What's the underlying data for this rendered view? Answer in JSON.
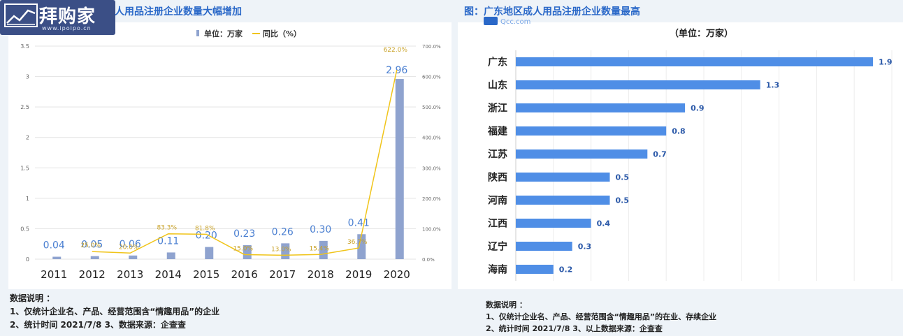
{
  "colors": {
    "bar_left": "#8fa3cf",
    "line": "#f0c419",
    "bar_right": "#4f8ee6",
    "title": "#2a68c8",
    "value_left": "#4a7fd1",
    "pct_label": "#c9a227"
  },
  "logo": {
    "text": "拜购家",
    "url": "www.ipoipo.cn"
  },
  "left": {
    "title": "成人用品注册企业数量大幅增加",
    "notes": {
      "heading": "数据说明 ：",
      "line1": "1、仅统计企业名、产品、经营范围含“情趣用品”的企业",
      "line2": "2、统计时间  2021/7/8      3、数据来源：企查查"
    }
  },
  "right": {
    "title": "图：广东地区成人用品注册企业数量最高",
    "qcc": "Qcc.com",
    "notes": {
      "heading": "数据说明 ：",
      "line1": "1、仅统计企业名、产品、经营范围含“情趣用品”的在业、存续企业",
      "line2": "2、统计时间  2021/7/8        3、以上数据来源：企查查"
    }
  },
  "chart_data": [
    {
      "type": "bar",
      "legend": [
        "单位：万家",
        "同比（%）"
      ],
      "legend_position": "top-center",
      "categories": [
        "2011",
        "2012",
        "2013",
        "2014",
        "2015",
        "2016",
        "2017",
        "2018",
        "2019",
        "2020"
      ],
      "series": [
        {
          "name": "单位：万家",
          "type": "bar",
          "values": [
            0.04,
            0.05,
            0.06,
            0.11,
            0.2,
            0.23,
            0.26,
            0.3,
            0.41,
            2.96
          ],
          "labels": [
            "0.04",
            "0.05",
            "0.06",
            "0.11",
            "0.20",
            "0.23",
            "0.26",
            "0.30",
            "0.41",
            "2.96"
          ]
        },
        {
          "name": "同比（%）",
          "type": "line",
          "axis": "right",
          "values": [
            null,
            25.0,
            20.0,
            83.3,
            81.8,
            15.0,
            13.0,
            15.4,
            36.7,
            622.0
          ],
          "labels": [
            "",
            "25.0%",
            "20.0%",
            "83.3%",
            "81.8%",
            "15.0%",
            "13.0%",
            "15.4%",
            "36.7%",
            "622.0%"
          ]
        }
      ],
      "ylim": [
        0,
        3.5
      ],
      "yticks": [
        "0",
        "0.5",
        "1",
        "1.5",
        "2",
        "2.5",
        "3",
        "3.5"
      ],
      "y2lim": [
        0,
        700
      ],
      "y2ticks": [
        "0.0%",
        "100.0%",
        "200.0%",
        "300.0%",
        "400.0%",
        "500.0%",
        "600.0%",
        "700.0%"
      ],
      "grid": "horizontal"
    },
    {
      "type": "bar",
      "orientation": "horizontal",
      "unit_label": "（单位：万家）",
      "categories": [
        "广东",
        "山东",
        "浙江",
        "福建",
        "江苏",
        "陕西",
        "河南",
        "江西",
        "辽宁",
        "海南"
      ],
      "values": [
        1.9,
        1.3,
        0.9,
        0.8,
        0.7,
        0.5,
        0.5,
        0.4,
        0.3,
        0.2
      ],
      "xlim": [
        0,
        2.0
      ],
      "grid": "vertical"
    }
  ]
}
